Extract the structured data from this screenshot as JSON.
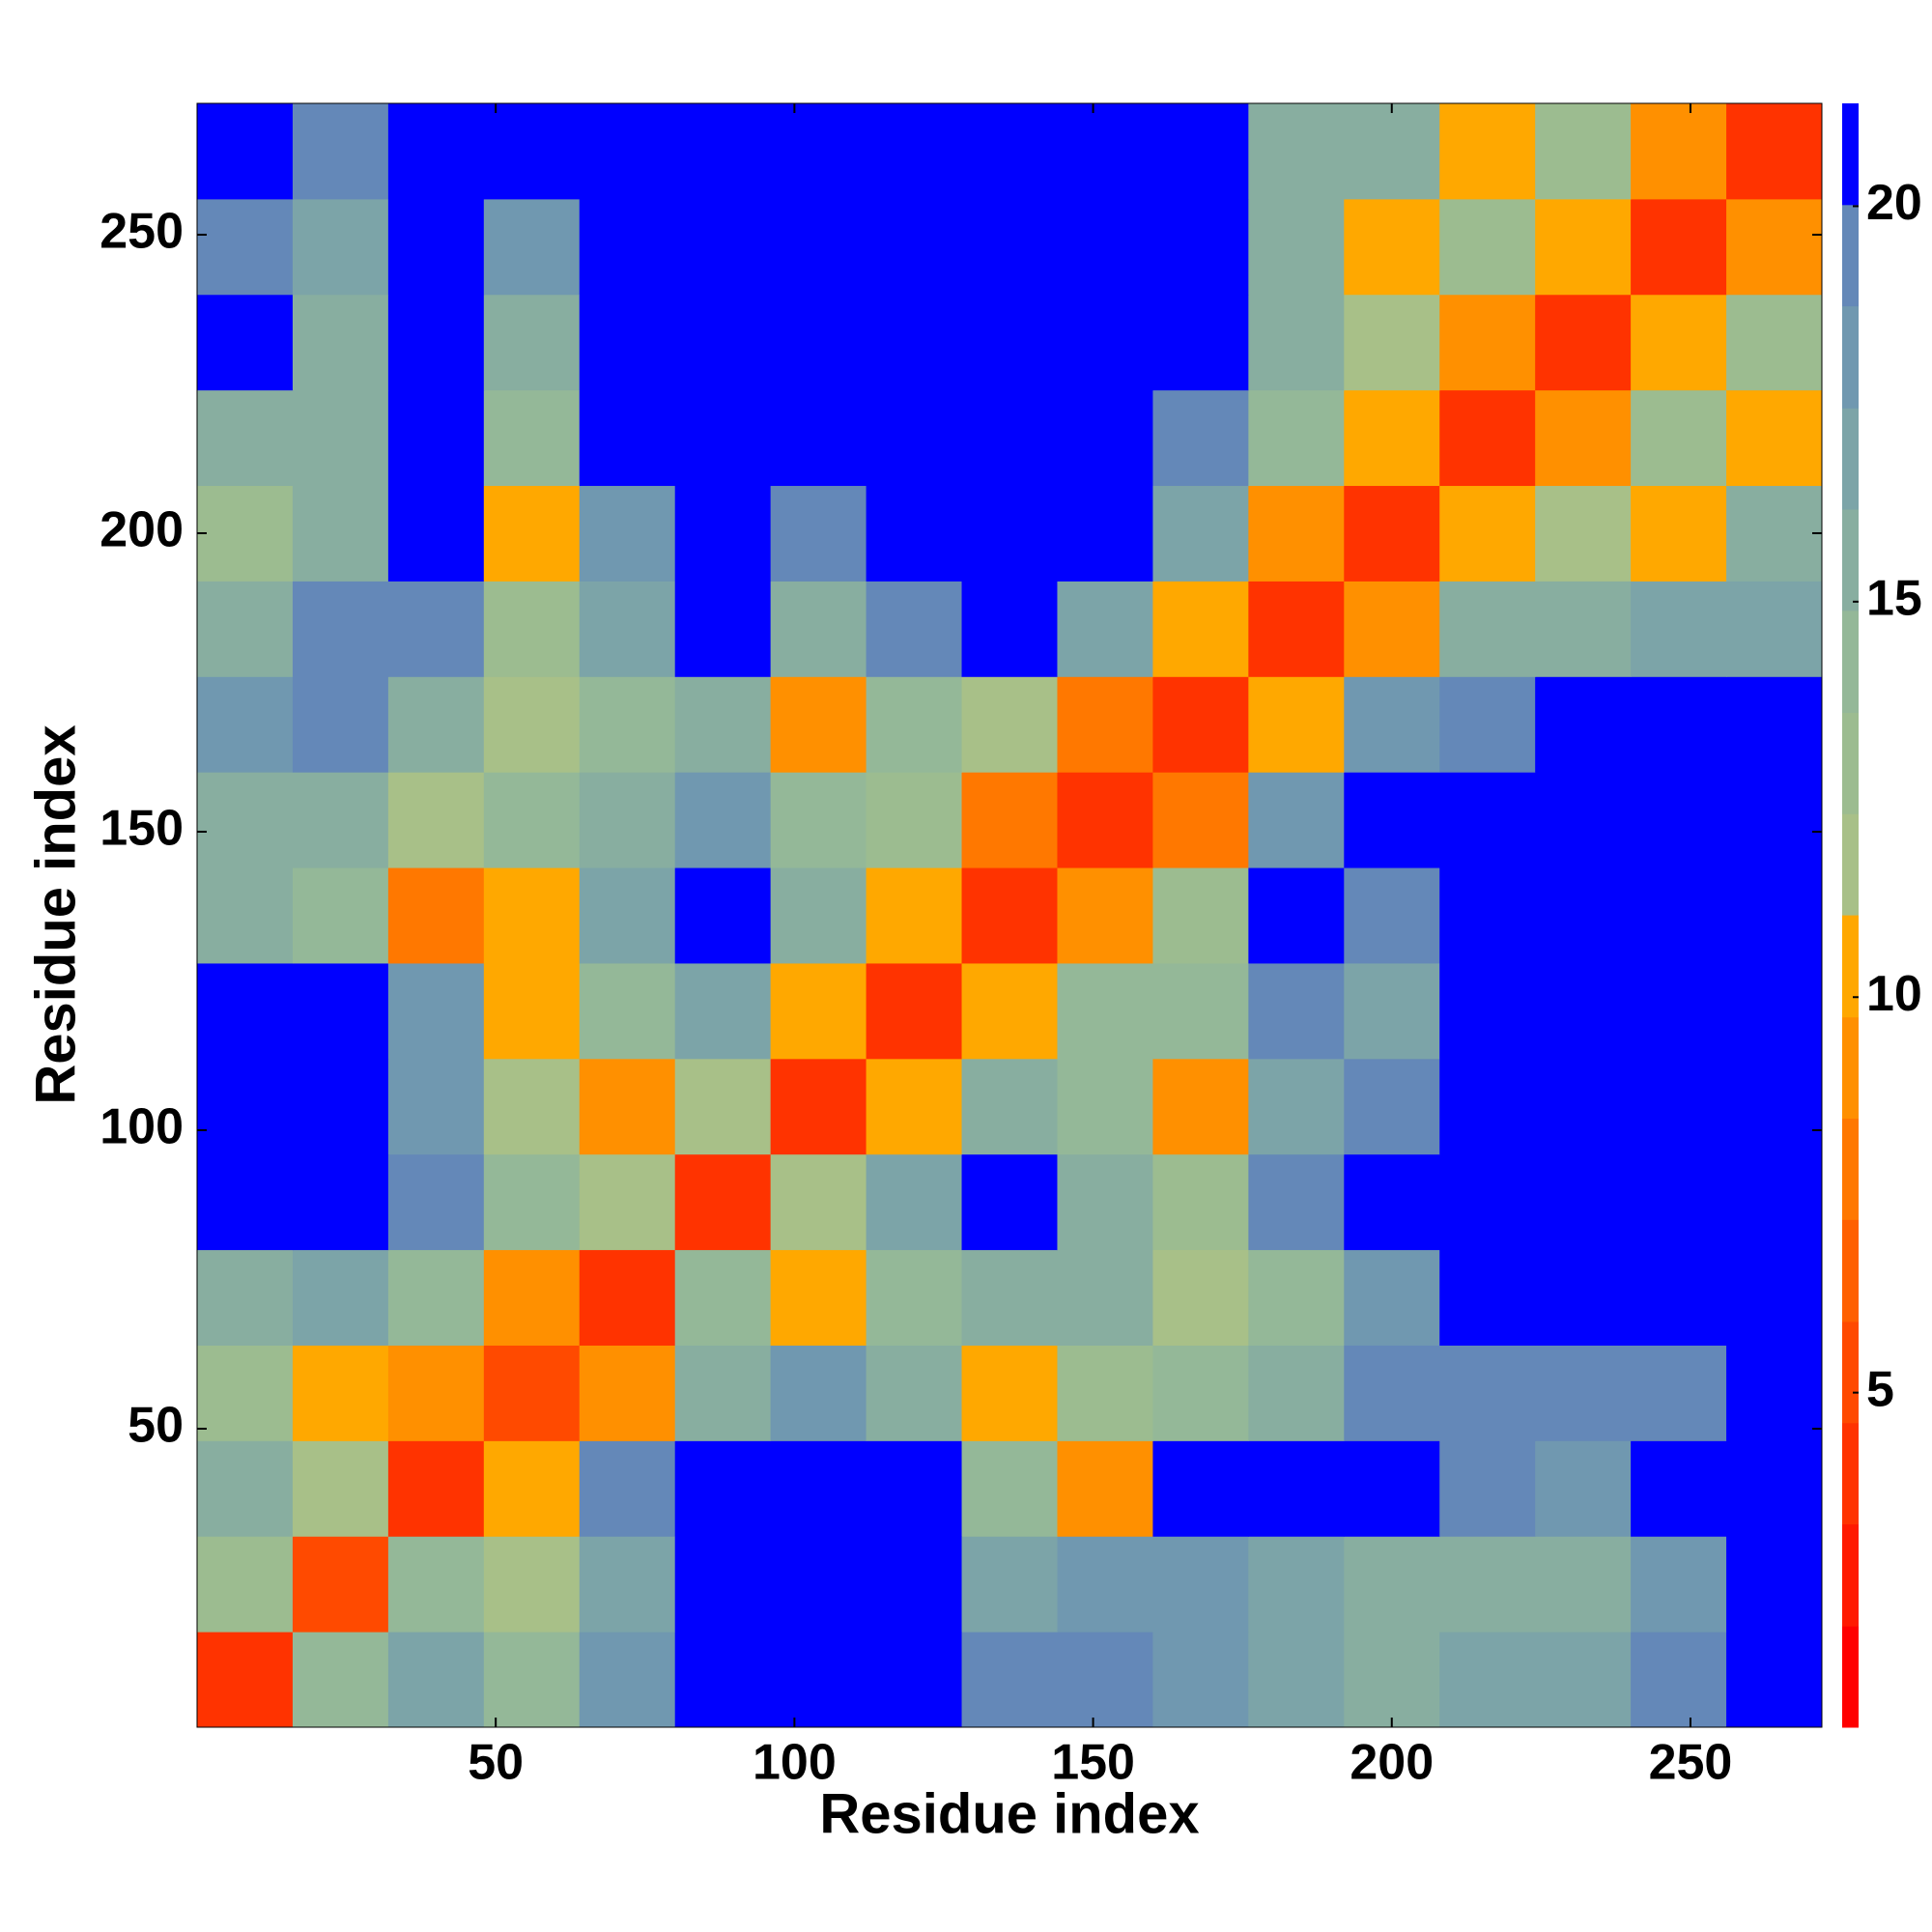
{
  "chart_data": {
    "type": "heatmap",
    "xlabel": "Residue index",
    "ylabel": "Residue index",
    "xlim": [
      0,
      272
    ],
    "ylim": [
      0,
      272
    ],
    "xticks": [
      50,
      100,
      150,
      200,
      250
    ],
    "yticks": [
      50,
      100,
      150,
      200,
      250
    ],
    "x_bins": [
      0,
      16,
      32,
      48,
      64,
      80,
      96,
      112,
      128,
      144,
      160,
      176,
      192,
      208,
      224,
      240,
      256,
      272
    ],
    "y_bins": [
      0,
      16,
      32,
      48,
      64,
      80,
      96,
      112,
      128,
      144,
      160,
      176,
      192,
      208,
      224,
      240,
      256,
      272
    ],
    "z": [
      [
        4,
        14,
        17,
        14,
        18,
        21,
        21,
        21,
        19,
        19,
        18,
        17,
        16,
        17,
        17,
        19,
        21
      ],
      [
        13,
        5,
        14,
        12,
        17,
        21,
        21,
        21,
        17,
        18,
        18,
        17,
        15,
        16,
        16,
        18,
        21
      ],
      [
        15,
        12,
        4,
        10,
        19,
        21,
        21,
        21,
        14,
        9,
        21,
        21,
        21,
        19,
        18,
        21,
        21
      ],
      [
        13,
        11,
        9,
        5,
        9,
        16,
        18,
        15,
        10,
        13,
        14,
        15,
        19,
        19,
        19,
        19,
        21
      ],
      [
        16,
        17,
        14,
        9,
        4,
        14,
        10,
        14,
        15,
        15,
        12,
        14,
        18,
        21,
        21,
        21,
        21
      ],
      [
        21,
        21,
        19,
        14,
        12,
        4,
        12,
        17,
        21,
        15,
        13,
        19,
        21,
        21,
        21,
        21,
        21
      ],
      [
        21,
        21,
        18,
        12,
        9,
        12,
        4,
        10,
        16,
        14,
        9,
        17,
        20,
        21,
        21,
        21,
        21
      ],
      [
        21,
        21,
        18,
        11,
        14,
        17,
        10,
        4,
        11,
        14,
        14,
        20,
        17,
        21,
        21,
        21,
        21
      ],
      [
        16,
        14,
        8,
        11,
        17,
        21,
        15,
        11,
        4,
        9,
        13,
        21,
        19,
        21,
        21,
        21,
        21
      ],
      [
        15,
        16,
        12,
        14,
        16,
        18,
        14,
        13,
        8,
        4,
        8,
        18,
        21,
        21,
        21,
        21,
        21
      ],
      [
        18,
        19,
        16,
        12,
        14,
        15,
        9,
        14,
        12,
        8,
        4,
        10,
        18,
        20,
        21,
        21,
        21
      ],
      [
        16,
        19,
        20,
        13,
        17,
        21,
        15,
        20,
        21,
        17,
        10,
        4,
        9,
        15,
        16,
        17,
        17
      ],
      [
        13,
        15,
        21,
        11,
        18,
        21,
        20,
        21,
        21,
        21,
        17,
        9,
        4,
        10,
        12,
        11,
        16
      ],
      [
        16,
        15,
        21,
        14,
        21,
        21,
        21,
        21,
        21,
        21,
        19,
        14,
        10,
        4,
        9,
        13,
        10
      ],
      [
        21,
        15,
        21,
        16,
        21,
        21,
        21,
        21,
        21,
        21,
        21,
        15,
        12,
        9,
        4,
        11,
        13
      ],
      [
        20,
        17,
        21,
        18,
        21,
        21,
        21,
        21,
        21,
        21,
        21,
        16,
        11,
        13,
        11,
        4,
        9
      ],
      [
        21,
        20,
        21,
        21,
        21,
        21,
        21,
        21,
        21,
        21,
        21,
        16,
        15,
        10,
        13,
        9,
        4
      ]
    ],
    "colorbar": {
      "lim": [
        0.77,
        21.3
      ],
      "ticks": [
        5,
        10,
        15,
        20
      ],
      "levels": [
        0.77,
        2.05,
        3.34,
        4.62,
        5.9,
        7.19,
        8.47,
        9.75,
        11.04,
        12.32,
        13.6,
        14.89,
        16.17,
        17.45,
        18.74,
        20.02,
        21.3
      ],
      "colors": [
        "#ff0000",
        "#ff1a00",
        "#ff3300",
        "#ff4a00",
        "#ff6000",
        "#ff7800",
        "#ff9000",
        "#ffa800",
        "#a8c088",
        "#9cbc90",
        "#94b898",
        "#88aea0",
        "#7ca4a8",
        "#7098b0",
        "#6488b8",
        "#0000ff"
      ]
    }
  }
}
